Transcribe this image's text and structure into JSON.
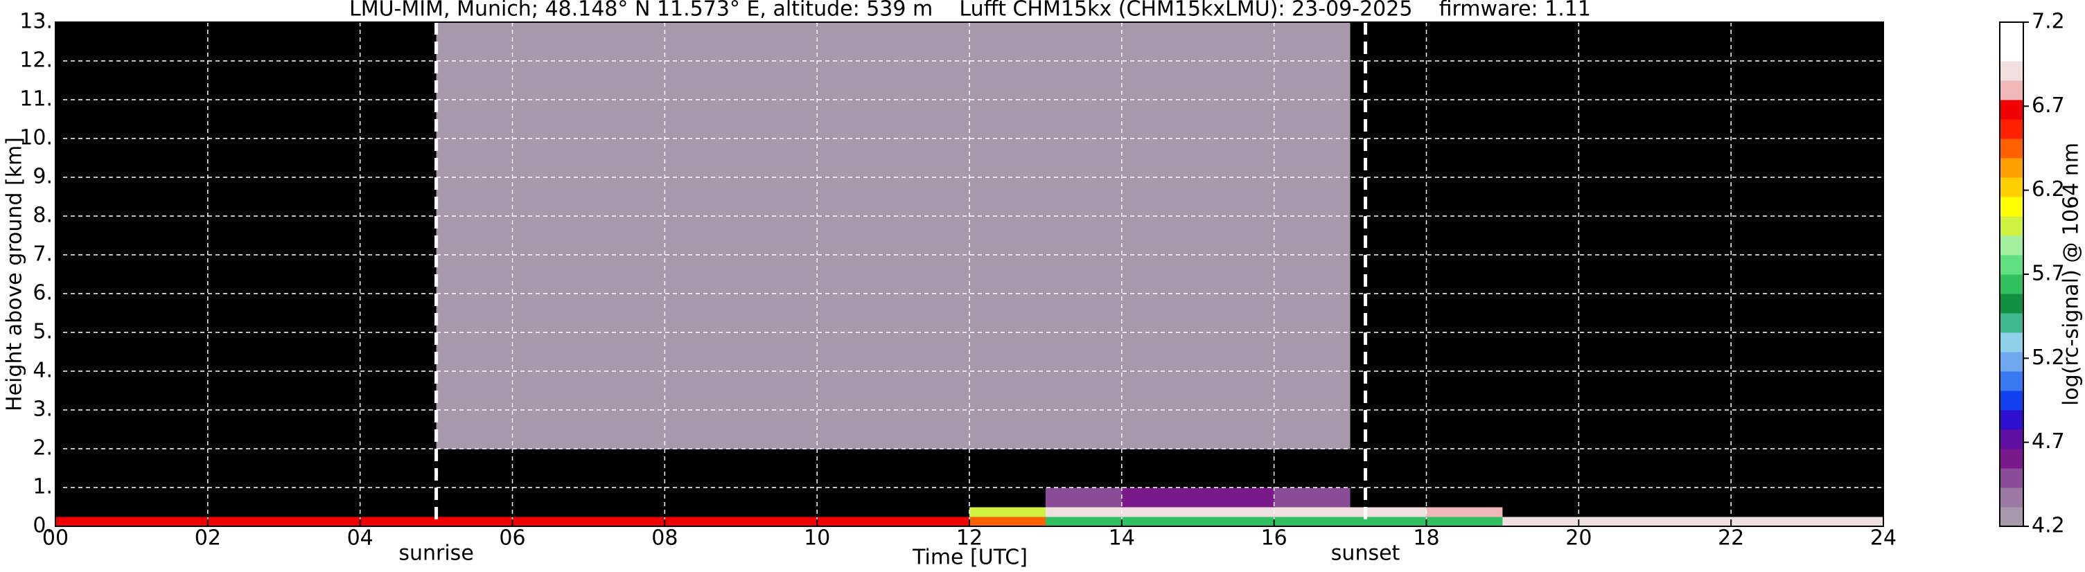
{
  "chart_data": {
    "type": "heatmap",
    "title": "LMU-MIM, Munich; 48.148° N 11.573° E, altitude: 539 m    Lufft CHM15kx (CHM15kxLMU): 23-09-2025    firmware: 1.11",
    "x_label": "Time [UTC]",
    "y_label": "Height above ground [km]",
    "colorbar_label": "log(rc-signal) @ 1064 nm",
    "x_edges": [
      0,
      1,
      2,
      3,
      4,
      5,
      6,
      7,
      8,
      9,
      10,
      11,
      12,
      13,
      14,
      15,
      16,
      17,
      18,
      19,
      20,
      21,
      22,
      23,
      24
    ],
    "y_edges": [
      0,
      0.25,
      0.5,
      1,
      2,
      4,
      6,
      8,
      10,
      13
    ],
    "z": [
      [
        6.7,
        6.7,
        6.7,
        6.7,
        6.7,
        6.7,
        6.7,
        6.7,
        6.7,
        6.7,
        6.7,
        6.7,
        6.4,
        5.6,
        5.6,
        5.6,
        5.6,
        5.6,
        5.6,
        6.9,
        6.9,
        6.9,
        6.9,
        6.9
      ],
      [
        4.0,
        4.0,
        4.0,
        4.0,
        4.0,
        4.0,
        4.0,
        4.0,
        4.0,
        4.0,
        4.0,
        4.0,
        6.0,
        6.9,
        6.9,
        6.9,
        6.9,
        6.9,
        6.8,
        4.0,
        4.0,
        4.0,
        4.0,
        4.0
      ],
      [
        4.0,
        4.0,
        4.0,
        4.0,
        4.0,
        4.0,
        4.0,
        4.1,
        4.1,
        4.1,
        4.1,
        4.1,
        4.1,
        4.5,
        4.6,
        4.6,
        4.5,
        4.0,
        4.0,
        4.0,
        4.0,
        4.0,
        4.0,
        4.0
      ],
      [
        4.0,
        4.0,
        4.0,
        4.0,
        4.0,
        4.1,
        4.1,
        4.1,
        4.1,
        4.1,
        4.1,
        4.1,
        4.1,
        4.1,
        4.1,
        4.1,
        4.1,
        4.0,
        4.0,
        4.0,
        4.0,
        4.0,
        4.0,
        4.0
      ],
      [
        4.08,
        4.08,
        4.08,
        4.08,
        4.08,
        4.25,
        4.25,
        4.25,
        4.25,
        4.25,
        4.25,
        4.25,
        4.25,
        4.25,
        4.25,
        4.25,
        4.25,
        4.08,
        4.08,
        4.08,
        4.08,
        4.08,
        4.08,
        4.08
      ],
      [
        4.12,
        4.12,
        4.12,
        4.12,
        4.12,
        4.28,
        4.28,
        4.28,
        4.28,
        4.28,
        4.28,
        4.28,
        4.28,
        4.28,
        4.28,
        4.28,
        4.28,
        4.12,
        4.12,
        4.12,
        4.12,
        4.12,
        4.12,
        4.12
      ],
      [
        4.15,
        4.15,
        4.15,
        4.15,
        4.15,
        4.3,
        4.3,
        4.3,
        4.3,
        4.3,
        4.3,
        4.3,
        4.3,
        4.3,
        4.3,
        4.3,
        4.3,
        4.15,
        4.15,
        4.15,
        4.15,
        4.15,
        4.15,
        4.15
      ],
      [
        4.15,
        4.15,
        4.15,
        4.15,
        4.15,
        4.3,
        4.3,
        4.3,
        4.3,
        4.3,
        4.3,
        4.3,
        4.3,
        4.3,
        4.3,
        4.3,
        4.3,
        4.15,
        4.15,
        4.15,
        4.15,
        4.15,
        4.15,
        4.15
      ],
      [
        4.15,
        4.15,
        4.15,
        4.15,
        4.15,
        4.3,
        4.3,
        4.3,
        4.3,
        4.3,
        4.3,
        4.3,
        4.3,
        4.3,
        4.3,
        4.3,
        4.3,
        4.15,
        4.15,
        4.15,
        4.15,
        4.15,
        4.15,
        4.15
      ]
    ],
    "xlim": [
      0,
      24
    ],
    "ylim": [
      0,
      13
    ],
    "zlim": [
      4.2,
      7.2
    ],
    "xticks": [
      {
        "value": 0,
        "label": "00"
      },
      {
        "value": 2,
        "label": "02"
      },
      {
        "value": 4,
        "label": "04"
      },
      {
        "value": 6,
        "label": "06"
      },
      {
        "value": 8,
        "label": "08"
      },
      {
        "value": 10,
        "label": "10"
      },
      {
        "value": 12,
        "label": "12"
      },
      {
        "value": 14,
        "label": "14"
      },
      {
        "value": 16,
        "label": "16"
      },
      {
        "value": 18,
        "label": "18"
      },
      {
        "value": 20,
        "label": "20"
      },
      {
        "value": 22,
        "label": "22"
      },
      {
        "value": 24,
        "label": "24"
      }
    ],
    "yticks": [
      {
        "value": 0,
        "label": "0."
      },
      {
        "value": 1,
        "label": "1."
      },
      {
        "value": 2,
        "label": "2."
      },
      {
        "value": 3,
        "label": "3."
      },
      {
        "value": 4,
        "label": "4."
      },
      {
        "value": 5,
        "label": "5."
      },
      {
        "value": 6,
        "label": "6."
      },
      {
        "value": 7,
        "label": "7."
      },
      {
        "value": 8,
        "label": "8."
      },
      {
        "value": 9,
        "label": "9."
      },
      {
        "value": 10,
        "label": "10."
      },
      {
        "value": 11,
        "label": "11."
      },
      {
        "value": 12,
        "label": "12."
      },
      {
        "value": 13,
        "label": "13."
      }
    ],
    "zticks": [
      4.2,
      4.7,
      5.2,
      5.7,
      6.2,
      6.7,
      7.2
    ],
    "colors": [
      "#a898ac",
      "#9a7aa4",
      "#8a4c96",
      "#7a1a8a",
      "#6010a0",
      "#3010d0",
      "#1040f0",
      "#3878f0",
      "#70a8f0",
      "#90d0e8",
      "#40b890",
      "#109040",
      "#30c060",
      "#60e080",
      "#a0f0a0",
      "#d0f040",
      "#ffff00",
      "#ffd000",
      "#ffa000",
      "#ff6000",
      "#ff2000",
      "#f00000",
      "#f0b8b8",
      "#f0e0e0",
      "#ffffff",
      "#ffffff"
    ],
    "under_color": "#000000",
    "grid": true,
    "grid_color": "#ffffff",
    "annotations": [
      {
        "x": 5.0,
        "label": "sunrise"
      },
      {
        "x": 17.2,
        "label": "sunset"
      }
    ]
  }
}
